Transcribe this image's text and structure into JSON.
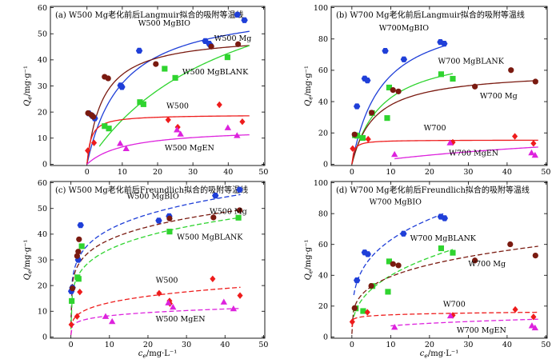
{
  "chart_data": [
    {
      "type": "scatter",
      "title": "(a) W500 Mg老化前后Langmuir拟合的吸附等温线",
      "ylabel": "Qe/mg·g⁻¹",
      "xlabel": "",
      "xlim": [
        -10,
        50
      ],
      "ylim": [
        0,
        60
      ],
      "xticks": [
        "0",
        "10",
        "20",
        "30",
        "40",
        "50"
      ],
      "yticks": [
        "0",
        "10",
        "20",
        "30",
        "40",
        "50",
        "60"
      ],
      "fit": "langmuir",
      "series": [
        {
          "name": "W500 MgBIO",
          "color": "#1f3fd8",
          "marker": "hexagon",
          "points": [
            [
              0.5,
              19.5
            ],
            [
              1.5,
              18.5
            ],
            [
              2.2,
              17.6
            ],
            [
              9.5,
              30.2
            ],
            [
              9.9,
              29.6
            ],
            [
              14.8,
              43.5
            ],
            [
              33.5,
              47.2
            ],
            [
              34.6,
              46.2
            ],
            [
              35.1,
              45.3
            ],
            [
              42.6,
              57.3
            ],
            [
              44.6,
              55.2
            ]
          ],
          "fit_params": [
            62,
            0.1
          ],
          "fit_range": [
            0,
            46
          ]
        },
        {
          "name": "W500 Mg",
          "color": "#7a1a10",
          "marker": "circle",
          "points": [
            [
              0.3,
              19.6
            ],
            [
              1.2,
              18.9
            ],
            [
              1.8,
              18.2
            ],
            [
              5.0,
              33.5
            ],
            [
              6.0,
              32.9
            ],
            [
              19.5,
              38.4
            ],
            [
              35.2,
              45.1
            ],
            [
              42.8,
              46.0
            ]
          ],
          "fit_params": [
            50,
            0.22
          ],
          "fit_range": [
            0,
            46
          ]
        },
        {
          "name": "W500 MgBLANK",
          "color": "#2fd42f",
          "marker": "square",
          "points": [
            [
              5.0,
              14.6
            ],
            [
              6.2,
              13.7
            ],
            [
              15.0,
              23.8
            ],
            [
              16.0,
              23.0
            ],
            [
              22.0,
              36.6
            ],
            [
              25.0,
              33.1
            ],
            [
              39.8,
              41.0
            ]
          ],
          "fit_params": [
            85,
            0.025
          ],
          "fit_range": [
            3.5,
            46
          ]
        },
        {
          "name": "W500",
          "color": "#ee1c1c",
          "marker": "diamond",
          "points": [
            [
              0.2,
              5.2
            ],
            [
              2.0,
              8.2
            ],
            [
              23.0,
              17.0
            ],
            [
              25.7,
              14.2
            ],
            [
              37.5,
              22.8
            ],
            [
              44.0,
              16.3
            ]
          ],
          "fit_params": [
            19,
            0.9
          ],
          "fit_range": [
            0,
            46
          ]
        },
        {
          "name": "W500 MgEN",
          "color": "#dd22dd",
          "marker": "triangle",
          "points": [
            [
              9.4,
              8.0
            ],
            [
              11.1,
              6.0
            ],
            [
              25.5,
              13.2
            ],
            [
              26.5,
              11.6
            ],
            [
              39.9,
              14.0
            ],
            [
              42.5,
              11.0
            ]
          ],
          "fit_params": [
            14,
            0.09
          ],
          "fit_range": [
            0,
            46
          ]
        }
      ],
      "labels": [
        {
          "text": "W500 MgBIO",
          "x": 14.5,
          "y": 53.2
        },
        {
          "text": "W500 Mg",
          "x": 36,
          "y": 47.3
        },
        {
          "text": "W500 MgBLANK",
          "x": 27,
          "y": 34.5
        },
        {
          "text": "W500",
          "x": 22.5,
          "y": 21.4
        },
        {
          "text": "W500 MgEN",
          "x": 22,
          "y": 5.4
        }
      ]
    },
    {
      "type": "scatter",
      "title": "(b) W700 Mg老化前后Langmuir拟合的吸附等温线",
      "ylabel": "Qe/mg·g⁻¹",
      "xlabel": "",
      "xlim": [
        -5,
        50
      ],
      "ylim": [
        0,
        100
      ],
      "xticks": [
        "0",
        "10",
        "20",
        "30",
        "40",
        "50"
      ],
      "yticks": [
        "0",
        "20",
        "40",
        "60",
        "80",
        "100"
      ],
      "fit": "langmuir",
      "series": [
        {
          "name": "W700MgBIO",
          "color": "#1f3fd8",
          "marker": "hexagon",
          "points": [
            [
              1.3,
              37.0
            ],
            [
              3.3,
              54.7
            ],
            [
              4.0,
              53.5
            ],
            [
              8.6,
              72.4
            ],
            [
              13.4,
              67.0
            ],
            [
              22.8,
              78.0
            ],
            [
              23.8,
              77.0
            ]
          ],
          "fit_params": [
            100,
            0.13
          ],
          "fit_range": [
            0,
            24
          ]
        },
        {
          "name": "W700 MgBLANK",
          "color": "#2fd42f",
          "marker": "square",
          "points": [
            [
              0.8,
              18.5
            ],
            [
              1.4,
              18.2
            ],
            [
              2.8,
              16.8
            ],
            [
              5.2,
              32.7
            ],
            [
              9.1,
              29.5
            ],
            [
              9.6,
              49.0
            ],
            [
              23.0,
              57.5
            ],
            [
              26.0,
              54.6
            ]
          ],
          "fit_params": [
            75,
            0.13
          ],
          "fit_range": [
            0,
            26
          ]
        },
        {
          "name": "W700 Mg",
          "color": "#7a1a10",
          "marker": "circle",
          "points": [
            [
              0.7,
              19.0
            ],
            [
              5.1,
              32.9
            ],
            [
              10.6,
              47.4
            ],
            [
              12.0,
              46.5
            ],
            [
              31.7,
              49.6
            ],
            [
              41.0,
              60.1
            ],
            [
              47.3,
              52.8
            ]
          ],
          "fit_params": [
            60,
            0.17
          ],
          "fit_range": [
            0,
            48
          ]
        },
        {
          "name": "W700",
          "color": "#ee1c1c",
          "marker": "diamond",
          "points": [
            [
              0.2,
              10.0
            ],
            [
              4.2,
              16.0
            ],
            [
              26.0,
              14.0
            ],
            [
              42.0,
              17.8
            ],
            [
              46.8,
              13.3
            ]
          ],
          "fit_params": [
            15.5,
            2.0
          ],
          "fit_range": [
            0,
            48
          ]
        },
        {
          "name": "W700 MgEN",
          "color": "#dd22dd",
          "marker": "triangle",
          "points": [
            [
              11.0,
              6.3
            ],
            [
              25.3,
              13.7
            ],
            [
              46.3,
              7.3
            ],
            [
              47.2,
              5.8
            ]
          ],
          "fit_params": [
            30,
            0.012
          ],
          "fit_range": [
            11,
            48
          ]
        }
      ],
      "labels": [
        {
          "text": "W700MgBIO",
          "x": 7,
          "y": 85.5
        },
        {
          "text": "W700 MgBLANK",
          "x": 22.2,
          "y": 64.4
        },
        {
          "text": "W700 Mg",
          "x": 33,
          "y": 42.1
        },
        {
          "text": "W700",
          "x": 18.5,
          "y": 21.7
        },
        {
          "text": "W700 MgEN",
          "x": 25,
          "y": 5.6
        }
      ]
    },
    {
      "type": "scatter",
      "title": "(c) W500 Mg老化前后Freundlich拟合的吸附等温线",
      "ylabel": "Qe/mg·g⁻¹",
      "xlabel": "ce/mg·L⁻¹",
      "xlim": [
        -5,
        50
      ],
      "ylim": [
        0,
        60
      ],
      "xticks": [
        "0",
        "10",
        "20",
        "30",
        "40",
        "50"
      ],
      "yticks": [
        "0",
        "10",
        "20",
        "30",
        "40",
        "50",
        "60"
      ],
      "fit": "freundlich",
      "series": [
        {
          "name": "W500 MgBIO",
          "color": "#1f3fd8",
          "marker": "hexagon",
          "points": [
            [
              0.1,
              17.8
            ],
            [
              0.4,
              19.2
            ],
            [
              1.9,
              30.0
            ],
            [
              2.5,
              43.5
            ],
            [
              22.8,
              45.3
            ],
            [
              25.5,
              47.0
            ],
            [
              37.5,
              55.0
            ],
            [
              43.8,
              57.3
            ]
          ],
          "fit_params": [
            27,
            0.19
          ],
          "fit_range": [
            0,
            44
          ]
        },
        {
          "name": "W500 Mg",
          "color": "#7a1a10",
          "marker": "circle",
          "points": [
            [
              0.4,
              18.9
            ],
            [
              1.6,
              31.5
            ],
            [
              1.9,
              33.2
            ],
            [
              2.1,
              38.0
            ],
            [
              25.6,
              46.1
            ],
            [
              37.0,
              46.5
            ],
            [
              43.8,
              49.3
            ]
          ],
          "fit_params": [
            25,
            0.18
          ],
          "fit_range": [
            0,
            44
          ]
        },
        {
          "name": "W500 MgBLANK",
          "color": "#2fd42f",
          "marker": "square",
          "points": [
            [
              0.2,
              14.0
            ],
            [
              1.7,
              23.2
            ],
            [
              2.0,
              22.6
            ],
            [
              2.8,
              35.3
            ],
            [
              25.6,
              41.0
            ],
            [
              43.5,
              46.4
            ]
          ],
          "fit_params": [
            21,
            0.21
          ],
          "fit_range": [
            0,
            44
          ]
        },
        {
          "name": "W500",
          "color": "#ee1c1c",
          "marker": "diamond",
          "points": [
            [
              0.1,
              4.8
            ],
            [
              1.6,
              8.0
            ],
            [
              2.3,
              17.5
            ],
            [
              22.9,
              17.0
            ],
            [
              25.6,
              14.0
            ],
            [
              25.7,
              13.0
            ],
            [
              36.8,
              22.6
            ],
            [
              43.9,
              16.1
            ]
          ],
          "fit_params": [
            7.5,
            0.25
          ],
          "fit_range": [
            0,
            44
          ]
        },
        {
          "name": "W500 MgEN",
          "color": "#dd22dd",
          "marker": "triangle",
          "points": [
            [
              9.0,
              8.0
            ],
            [
              10.7,
              6.0
            ],
            [
              25.3,
              13.3
            ],
            [
              26.5,
              11.6
            ],
            [
              39.7,
              13.6
            ],
            [
              42.2,
              11.0
            ]
          ],
          "fit_params": [
            5.2,
            0.2
          ],
          "fit_range": [
            0,
            44
          ]
        }
      ],
      "labels": [
        {
          "text": "W500 MgBIO",
          "x": 14.5,
          "y": 53.8
        },
        {
          "text": "W500 Mg",
          "x": 36,
          "y": 47.9
        },
        {
          "text": "W500 MgBLANK",
          "x": 27.5,
          "y": 38.0
        },
        {
          "text": "W500",
          "x": 22,
          "y": 21.1
        },
        {
          "text": "W500 MgEN",
          "x": 22,
          "y": 6.1
        }
      ]
    },
    {
      "type": "scatter",
      "title": "(d) W700 Mg老化前后Freundlich拟合的吸附等温线",
      "ylabel": "Qe/mg·g⁻¹",
      "xlabel": "ce/mg·L⁻¹",
      "xlim": [
        -5,
        50
      ],
      "ylim": [
        0,
        100
      ],
      "xticks": [
        "0",
        "10",
        "20",
        "30",
        "40",
        "50"
      ],
      "yticks": [
        "0",
        "20",
        "40",
        "60",
        "80",
        "100"
      ],
      "fit": "freundlich",
      "series": [
        {
          "name": "W700 MgBIO",
          "color": "#1f3fd8",
          "marker": "hexagon",
          "points": [
            [
              1.3,
              36.7
            ],
            [
              3.3,
              54.8
            ],
            [
              4.1,
              53.7
            ],
            [
              13.3,
              67.0
            ],
            [
              22.9,
              78.0
            ],
            [
              23.9,
              77.0
            ]
          ],
          "fit_params": [
            33,
            0.28
          ],
          "fit_range": [
            0.5,
            24
          ]
        },
        {
          "name": "W700 MgBLANK",
          "color": "#2fd42f",
          "marker": "square",
          "points": [
            [
              1.0,
              18.5
            ],
            [
              2.9,
              16.8
            ],
            [
              5.3,
              33.0
            ],
            [
              9.3,
              29.3
            ],
            [
              9.6,
              49.0
            ],
            [
              23.0,
              57.5
            ],
            [
              26.0,
              54.6
            ]
          ],
          "fit_params": [
            17,
            0.37
          ],
          "fit_range": [
            0.5,
            26
          ]
        },
        {
          "name": "W700 Mg",
          "color": "#7a1a10",
          "marker": "circle",
          "points": [
            [
              0.7,
              18.7
            ],
            [
              5.0,
              33.1
            ],
            [
              10.6,
              47.3
            ],
            [
              12.0,
              46.4
            ],
            [
              31.7,
              49.6
            ],
            [
              40.8,
              60.1
            ],
            [
              47.3,
              52.8
            ]
          ],
          "fit_params": [
            21.5,
            0.26
          ],
          "fit_range": [
            0,
            48
          ]
        },
        {
          "name": "W700",
          "color": "#ee1c1c",
          "marker": "diamond",
          "points": [
            [
              0.1,
              9.8
            ],
            [
              4.0,
              16.0
            ],
            [
              26.0,
              14.0
            ],
            [
              42.1,
              17.8
            ],
            [
              46.8,
              13.0
            ]
          ],
          "fit_params": [
            12.2,
            0.07
          ],
          "fit_range": [
            0,
            48
          ]
        },
        {
          "name": "W700 MgEN",
          "color": "#dd22dd",
          "marker": "triangle",
          "points": [
            [
              11.0,
              6.3
            ],
            [
              25.4,
              13.7
            ],
            [
              46.4,
              7.3
            ],
            [
              47.2,
              5.9
            ]
          ],
          "fit_params": [
            3.6,
            0.3
          ],
          "fit_range": [
            10,
            48
          ]
        }
      ],
      "labels": [
        {
          "text": "W700 MgBIO",
          "x": 4.5,
          "y": 86.1
        },
        {
          "text": "W700 MgBLANK",
          "x": 15,
          "y": 62.4
        },
        {
          "text": "W700 Mg",
          "x": 30,
          "y": 45.8
        },
        {
          "text": "W700",
          "x": 23.5,
          "y": 19.7
        },
        {
          "text": "W700 MgEN",
          "x": 27,
          "y": 2.8
        }
      ]
    }
  ]
}
